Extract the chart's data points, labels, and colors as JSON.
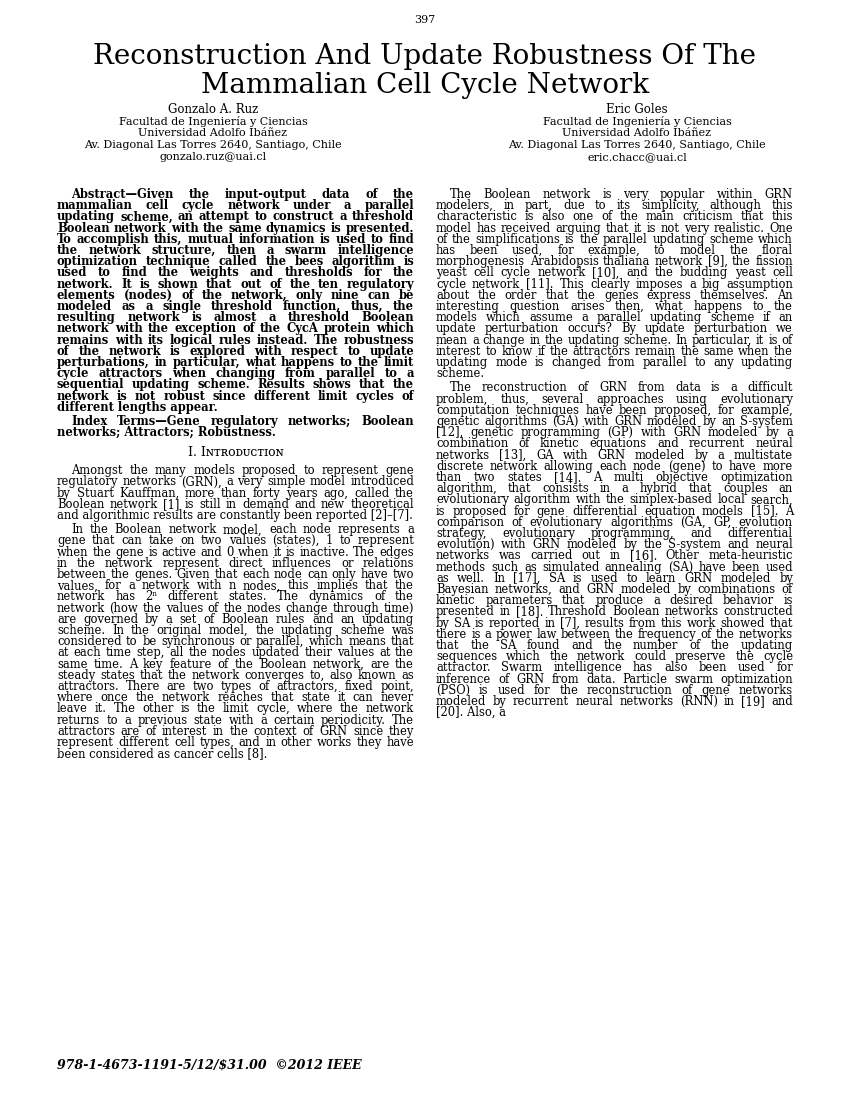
{
  "page_number": "397",
  "title_line1": "Reconstruction And Update Robustness Of The",
  "title_line2": "Mammalian Cell Cycle Network",
  "author1_name": "Gonzalo A. Ruz",
  "author1_line2": "Facultad de Ingeniería y Ciencias",
  "author1_line3": "Universidad Adolfo Ibáñez",
  "author1_line4": "Av. Diagonal Las Torres 2640, Santiago, Chile",
  "author1_line5": "gonzalo.ruz@uai.cl",
  "author2_name": "Eric Goles",
  "author2_line2": "Facultad de Ingeniería y Ciencias",
  "author2_line3": "Universidad Adolfo Ibáñez",
  "author2_line4": "Av. Diagonal Las Torres 2640, Santiago, Chile",
  "author2_line5": "eric.chacc@uai.cl",
  "abstract_text": "Abstract—Given the input-output data of the mammalian cell cycle network under a parallel updating scheme, an attempt to construct a threshold Boolean network with the same dynamics is presented. To accomplish this, mutual information is used to find the network structure, then a swarm intelligence optimization technique called the bees algorithm is used to find the weights and thresholds for the network. It is shown that out of the ten regulatory elements (nodes) of the network, only nine can be modeled as a single threshold function, thus, the resulting network is almost a threshold Boolean network with the exception of the CycA protein which remains with its logical rules instead. The robustness of the network is explored with respect to update perturbations, in particular, what happens to the limit cycle attractors when changing from parallel to a sequential updating scheme. Results shows that the network is not robust since different limit cycles of different lengths appear.",
  "index_terms": "Index Terms—Gene regulatory networks; Boolean networks; Attractors; Robustness.",
  "section1_title": "I. Iɴᴛʀᴏᴅᴜᴄᴛɪᴏɴ",
  "section1_title_plain": "I. INTRODUCTION",
  "intro_para1": "Amongst the many models proposed to represent gene regulatory networks (GRN), a very simple model introduced by Stuart Kauffman, more than forty years ago, called the Boolean network [1] is still in demand and new theoretical and algorithmic results are constantly been reported [2]–[7].",
  "intro_para2": "In the Boolean network model, each node represents a gene that can take on two values (states), 1 to represent when the gene is active and 0 when it is inactive. The edges in the network represent direct influences or relations between the genes. Given that each node can only have two values, for a network with n nodes, this implies that the network has 2ⁿ different states. The dynamics of the network (how the values of the nodes change through time) are governed by a set of Boolean rules and an updating scheme. In the original model, the updating scheme was considered to be synchronous or parallel, which means that at each time step, all the nodes updated their values at the same time. A key feature of the Boolean network, are the steady states that the network converges to, also known as attractors. There are two types of attractors, fixed point, where once the network reaches that state it can never leave it. The other is the limit cycle, where the network returns to a previous state with a certain periodicity. The attractors are of interest in the context of GRN since they represent different cell types, and in other works they have been considered as cancer cells [8].",
  "right_col_para1": "The Boolean network is very popular within GRN modelers, in part, due to its simplicity, although this characteristic is also one of the main criticism that this model has received arguing that it is not very realistic. One of the simplifications is the parallel updating scheme which has been used, for example, to model the floral morphogenesis Arabidopsis thaliana network [9], the fission yeast cell cycle network [10], and the budding yeast cell cycle network [11]. This clearly imposes a big assumption about the order that the genes express themselves. An interesting question arises then, what happens to the models which assume a parallel updating scheme if an update perturbation occurs? By update perturbation we mean a change in the updating scheme. In particular, it is of interest to know if the attractors remain the same when the updating mode is changed from parallel to any updating scheme.",
  "right_col_para2": "The reconstruction of GRN from data is a difficult problem, thus, several approaches using evolutionary computation techniques have been proposed, for example, genetic algorithms (GA) with GRN modeled by an S-system [12], genetic programming (GP) with GRN modeled by a combination of kinetic equations and recurrent neural networks [13], GA with GRN modeled by a multistate discrete network allowing each node (gene) to have more than two states [14]. A multi objective optimization algorithm, that consists in a hybrid that couples an evolutionary algorithm with the simplex-based local search, is proposed for gene differential equation models [15]. A comparison of evolutionary algorithms (GA, GP, evolution strategy, evolutionary programming, and differential evolution) with GRN modeled by the S-system and neural networks was carried out in [16]. Other meta-heuristic methods such as simulated annealing (SA) have been used as well. In [17], SA is used to learn GRN modeled by Bayesian networks, and GRN modeled by combinations of kinetic parameters that produce a desired behavior is presented in [18]. Threshold Boolean networks constructed by SA is reported in [7], results from this work showed that there is a power law between the frequency of the networks that the SA found and the number of the updating sequences which the network could preserve the cycle attractor. Swarm intelligence has also been used for inference of GRN from data. Particle swarm optimization (PSO) is used for the reconstruction of gene networks modeled by recurrent neural networks (RNN) in [19] and [20]. Also, a",
  "footer_text": "978-1-4673-1191-5/12/$31.00  ©2012 IEEE",
  "background_color": "#ffffff",
  "text_color": "#000000"
}
